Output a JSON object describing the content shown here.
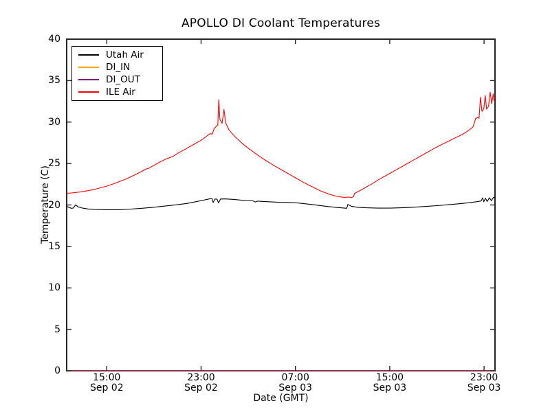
{
  "figure": {
    "title": "APOLLO DI Coolant Temperatures",
    "xlabel": "Date (GMT)",
    "ylabel": "Temperature (C)"
  },
  "legend": {
    "position": "upper left",
    "items": [
      {
        "label": "Utah Air",
        "color": "#000000"
      },
      {
        "label": "DI_IN",
        "color": "#ffa500"
      },
      {
        "label": "DI_OUT",
        "color": "#800080"
      },
      {
        "label": "ILE Air",
        "color": "#ff0000"
      }
    ]
  },
  "chart_data": {
    "type": "line",
    "title": "APOLLO DI Coolant Temperatures",
    "xlabel": "Date (GMT)",
    "ylabel": "Temperature (C)",
    "grid": false,
    "legend_position": "upper left",
    "x_unit": "hours since Sep 02 00:00 GMT",
    "x_range": [
      11.6,
      47.93
    ],
    "y_range": [
      0,
      40
    ],
    "x_tick_hours": [
      15,
      23,
      31,
      39,
      47
    ],
    "x_tick_labels": [
      {
        "time": "15:00",
        "date": "Sep 02"
      },
      {
        "time": "23:00",
        "date": "Sep 02"
      },
      {
        "time": "07:00",
        "date": "Sep 03"
      },
      {
        "time": "15:00",
        "date": "Sep 03"
      },
      {
        "time": "23:00",
        "date": "Sep 03"
      }
    ],
    "y_tick_values": [
      0,
      5,
      10,
      15,
      20,
      25,
      30,
      35,
      40
    ],
    "y_tick_labels": [
      "0",
      "5",
      "10",
      "15",
      "20",
      "25",
      "30",
      "35",
      "40"
    ],
    "series": [
      {
        "id": "utah-air",
        "name": "Utah Air",
        "color": "#000000",
        "width": 1.1,
        "points": [
          [
            11.6,
            19.85
          ],
          [
            11.8,
            19.7
          ],
          [
            12.0,
            19.6
          ],
          [
            12.15,
            19.62
          ],
          [
            12.35,
            20.0
          ],
          [
            12.6,
            19.75
          ],
          [
            12.95,
            19.62
          ],
          [
            13.4,
            19.52
          ],
          [
            14.0,
            19.47
          ],
          [
            15.0,
            19.43
          ],
          [
            16.0,
            19.43
          ],
          [
            17.0,
            19.5
          ],
          [
            18.0,
            19.6
          ],
          [
            19.0,
            19.73
          ],
          [
            20.0,
            19.88
          ],
          [
            21.0,
            20.03
          ],
          [
            21.8,
            20.18
          ],
          [
            22.5,
            20.38
          ],
          [
            23.2,
            20.58
          ],
          [
            23.7,
            20.73
          ],
          [
            23.92,
            20.78
          ],
          [
            24.02,
            20.3
          ],
          [
            24.18,
            20.72
          ],
          [
            24.35,
            20.7
          ],
          [
            24.48,
            20.25
          ],
          [
            24.65,
            20.72
          ],
          [
            25.1,
            20.73
          ],
          [
            25.7,
            20.68
          ],
          [
            26.3,
            20.6
          ],
          [
            26.9,
            20.54
          ],
          [
            27.4,
            20.5
          ],
          [
            27.58,
            20.36
          ],
          [
            27.8,
            20.46
          ],
          [
            28.6,
            20.4
          ],
          [
            29.6,
            20.32
          ],
          [
            30.6,
            20.28
          ],
          [
            31.2,
            20.24
          ],
          [
            32.0,
            20.12
          ],
          [
            32.8,
            19.98
          ],
          [
            33.6,
            19.84
          ],
          [
            34.4,
            19.72
          ],
          [
            35.0,
            19.64
          ],
          [
            35.35,
            19.6
          ],
          [
            35.45,
            20.06
          ],
          [
            35.75,
            19.84
          ],
          [
            36.3,
            19.72
          ],
          [
            37.0,
            19.66
          ],
          [
            38.0,
            19.62
          ],
          [
            39.0,
            19.62
          ],
          [
            40.0,
            19.66
          ],
          [
            41.0,
            19.73
          ],
          [
            42.0,
            19.82
          ],
          [
            43.0,
            19.92
          ],
          [
            44.0,
            20.03
          ],
          [
            45.0,
            20.16
          ],
          [
            45.8,
            20.28
          ],
          [
            46.4,
            20.4
          ],
          [
            46.75,
            20.48
          ],
          [
            46.88,
            20.86
          ],
          [
            46.98,
            20.38
          ],
          [
            47.12,
            20.82
          ],
          [
            47.26,
            20.42
          ],
          [
            47.46,
            20.86
          ],
          [
            47.62,
            20.52
          ],
          [
            47.8,
            20.92
          ],
          [
            47.93,
            20.86
          ]
        ]
      },
      {
        "id": "di-in",
        "name": "DI_IN",
        "color": "#ffa500",
        "width": 1.6,
        "points": [
          [
            11.6,
            0.0
          ],
          [
            47.93,
            0.0
          ]
        ]
      },
      {
        "id": "di-out",
        "name": "DI_OUT",
        "color": "#800080",
        "width": 1.0,
        "points": [
          [
            11.6,
            0.0
          ],
          [
            47.93,
            0.0
          ]
        ]
      },
      {
        "id": "ile-air",
        "name": "ILE Air",
        "color": "#ff0000",
        "width": 1.1,
        "points": [
          [
            11.6,
            21.4
          ],
          [
            12.0,
            21.45
          ],
          [
            12.5,
            21.52
          ],
          [
            13.0,
            21.62
          ],
          [
            13.5,
            21.75
          ],
          [
            14.0,
            21.9
          ],
          [
            14.5,
            22.08
          ],
          [
            15.0,
            22.28
          ],
          [
            15.5,
            22.52
          ],
          [
            16.0,
            22.78
          ],
          [
            16.5,
            23.06
          ],
          [
            17.0,
            23.38
          ],
          [
            17.5,
            23.72
          ],
          [
            18.0,
            24.08
          ],
          [
            18.35,
            24.35
          ],
          [
            18.55,
            24.42
          ],
          [
            19.0,
            24.78
          ],
          [
            19.5,
            25.18
          ],
          [
            20.0,
            25.52
          ],
          [
            20.3,
            25.68
          ],
          [
            20.6,
            25.85
          ],
          [
            21.0,
            26.22
          ],
          [
            21.5,
            26.6
          ],
          [
            22.0,
            27.0
          ],
          [
            22.5,
            27.4
          ],
          [
            23.0,
            27.8
          ],
          [
            23.3,
            28.1
          ],
          [
            23.6,
            28.45
          ],
          [
            23.8,
            28.6
          ],
          [
            23.95,
            28.55
          ],
          [
            24.1,
            29.2
          ],
          [
            24.3,
            29.5
          ],
          [
            24.42,
            29.62
          ],
          [
            24.5,
            32.7
          ],
          [
            24.6,
            30.3
          ],
          [
            24.78,
            29.85
          ],
          [
            24.94,
            31.5
          ],
          [
            25.08,
            29.9
          ],
          [
            25.35,
            29.1
          ],
          [
            25.65,
            28.6
          ],
          [
            26.05,
            28.0
          ],
          [
            26.55,
            27.35
          ],
          [
            27.05,
            26.8
          ],
          [
            27.65,
            26.18
          ],
          [
            28.25,
            25.58
          ],
          [
            28.95,
            24.95
          ],
          [
            29.65,
            24.38
          ],
          [
            30.35,
            23.82
          ],
          [
            31.0,
            23.28
          ],
          [
            31.7,
            22.72
          ],
          [
            32.4,
            22.22
          ],
          [
            33.1,
            21.72
          ],
          [
            33.7,
            21.38
          ],
          [
            34.3,
            21.12
          ],
          [
            34.8,
            20.98
          ],
          [
            35.2,
            20.92
          ],
          [
            35.55,
            20.95
          ],
          [
            35.75,
            20.9
          ],
          [
            35.92,
            20.98
          ],
          [
            36.02,
            21.4
          ],
          [
            36.5,
            21.75
          ],
          [
            37.0,
            22.15
          ],
          [
            37.5,
            22.55
          ],
          [
            38.0,
            23.0
          ],
          [
            38.5,
            23.4
          ],
          [
            39.0,
            23.8
          ],
          [
            39.5,
            24.2
          ],
          [
            40.0,
            24.6
          ],
          [
            40.5,
            25.0
          ],
          [
            41.0,
            25.4
          ],
          [
            41.5,
            25.8
          ],
          [
            42.0,
            26.2
          ],
          [
            42.5,
            26.6
          ],
          [
            43.0,
            27.0
          ],
          [
            43.5,
            27.35
          ],
          [
            44.0,
            27.7
          ],
          [
            44.5,
            28.05
          ],
          [
            45.0,
            28.4
          ],
          [
            45.4,
            28.7
          ],
          [
            45.8,
            29.1
          ],
          [
            46.05,
            29.4
          ],
          [
            46.18,
            29.9
          ],
          [
            46.28,
            30.4
          ],
          [
            46.45,
            30.55
          ],
          [
            46.58,
            30.45
          ],
          [
            46.7,
            33.0
          ],
          [
            46.82,
            31.3
          ],
          [
            46.98,
            31.6
          ],
          [
            47.1,
            33.2
          ],
          [
            47.22,
            31.55
          ],
          [
            47.38,
            31.9
          ],
          [
            47.52,
            33.6
          ],
          [
            47.65,
            32.2
          ],
          [
            47.78,
            33.4
          ],
          [
            47.85,
            32.6
          ],
          [
            47.93,
            33.0
          ]
        ]
      }
    ]
  }
}
